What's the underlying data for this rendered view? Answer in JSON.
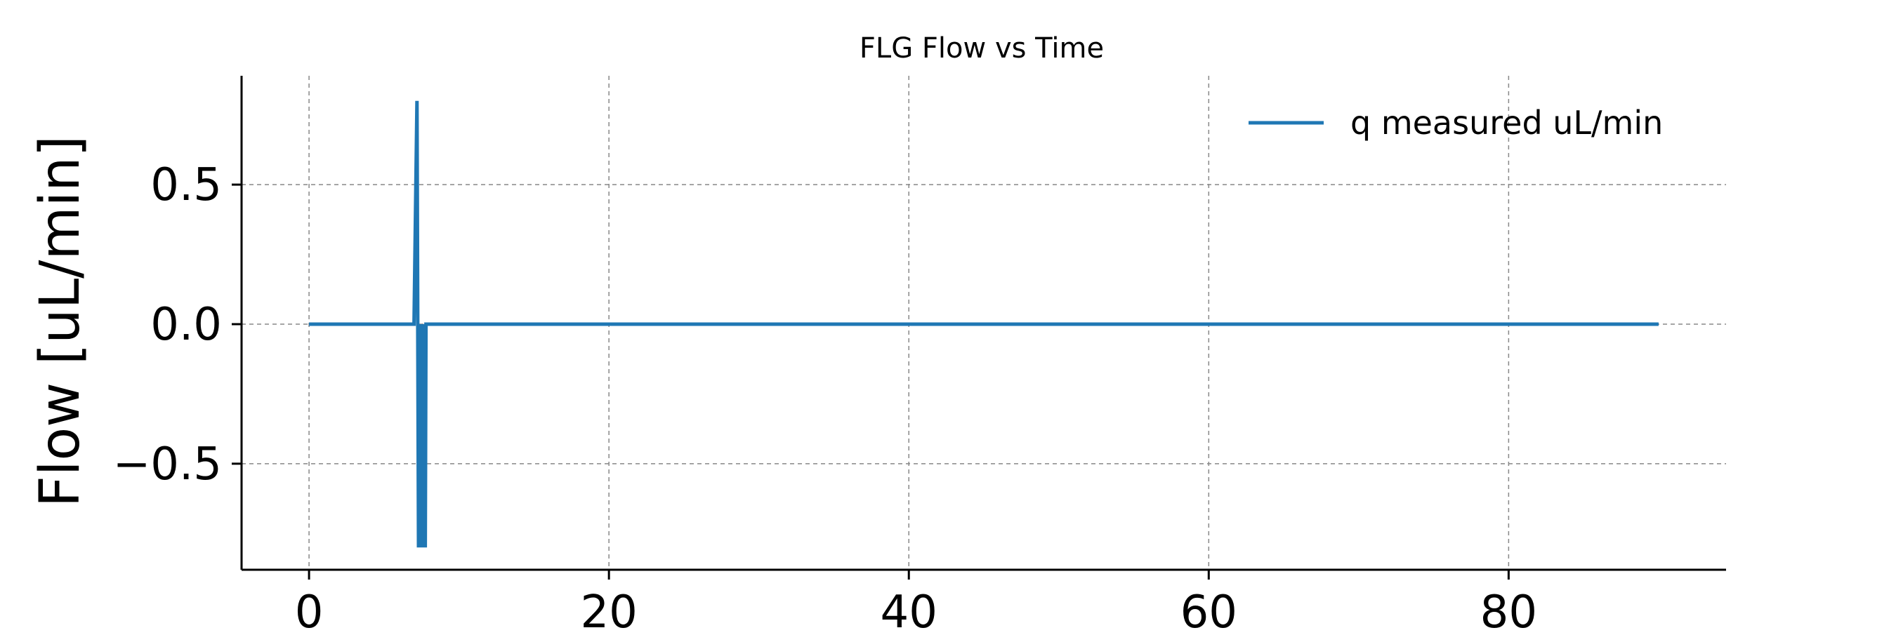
{
  "chart_data": {
    "type": "line",
    "title": "FLG Flow vs Time",
    "xlabel": "",
    "ylabel": "Flow [uL/min]",
    "xlim": [
      -4.5,
      94.5
    ],
    "ylim": [
      -0.88,
      0.89
    ],
    "x_ticks": [
      0,
      20,
      40,
      60,
      80
    ],
    "x_tick_labels": [
      "0",
      "20",
      "40",
      "60",
      "80"
    ],
    "y_ticks": [
      0.5,
      0.0,
      -0.5
    ],
    "y_tick_labels": [
      "0.5",
      "0.0",
      "−0.5"
    ],
    "grid": true,
    "legend_position": "top-right",
    "colors": {
      "series": "#1f77b4",
      "grid": "#888888",
      "axis": "#000000"
    },
    "series": [
      {
        "name": "q measured uL/min",
        "x": [
          0,
          7.0,
          7.2,
          7.25,
          7.3,
          7.4,
          7.5,
          7.55,
          7.6,
          7.7,
          7.75,
          7.8,
          8.0,
          90
        ],
        "y": [
          0,
          0,
          0.8,
          0,
          -0.8,
          0,
          -0.8,
          0,
          -0.8,
          0,
          -0.8,
          0,
          0,
          0
        ]
      }
    ]
  }
}
